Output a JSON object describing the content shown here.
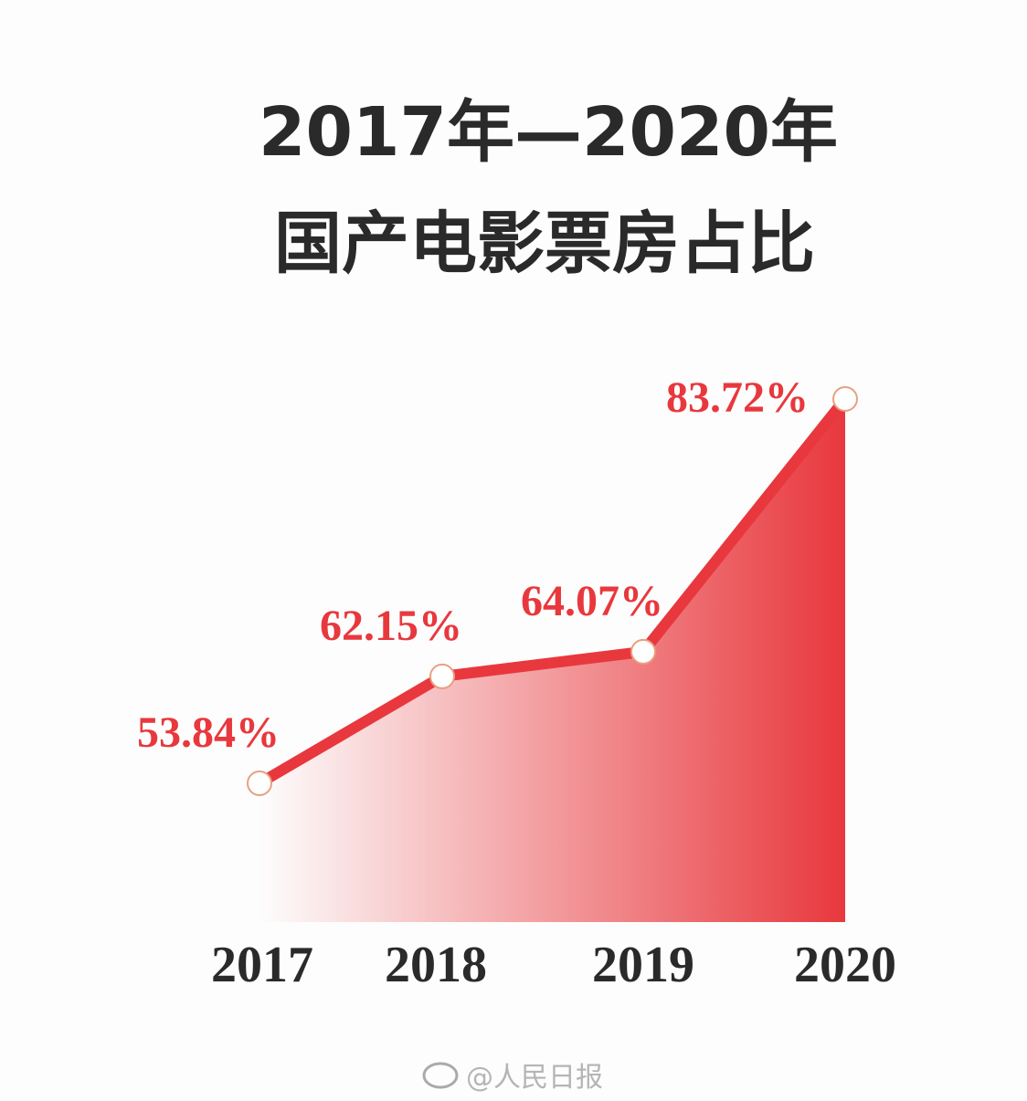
{
  "chart_data": {
    "type": "area",
    "title": "2017年—2020年",
    "subtitle": "国产电影票房占比",
    "categories": [
      "2017",
      "2018",
      "2019",
      "2020"
    ],
    "series": [
      {
        "name": "国产电影票房占比",
        "color": "#e8383d",
        "values": [
          53.84,
          62.15,
          64.07,
          83.72
        ],
        "value_labels": [
          "53.84%",
          "62.15%",
          "64.07%",
          "83.72%"
        ]
      }
    ],
    "watermark": "@人民日报"
  }
}
